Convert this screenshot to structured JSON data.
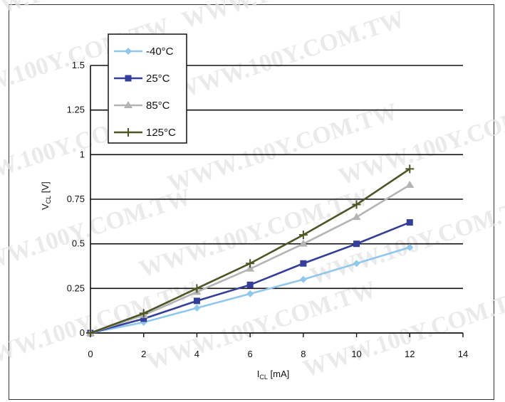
{
  "watermark": "WWW.100Y.COM.TW",
  "chart_data": {
    "type": "line",
    "xlabel": "I",
    "xlabel_sub": "CL",
    "xlabel_unit": " [mA]",
    "ylabel": "V",
    "ylabel_sub": "CL",
    "ylabel_unit": " [V]",
    "xlim": [
      0,
      14
    ],
    "ylim": [
      0,
      1.5
    ],
    "xticks": [
      "0",
      "2",
      "4",
      "6",
      "8",
      "10",
      "12",
      "14"
    ],
    "yticks": [
      "0",
      "0.25",
      "0.5",
      "0.75",
      "1",
      "1.25",
      "1.5"
    ],
    "grid": "horizontal",
    "legend_position": "top-left",
    "x": [
      0,
      2,
      4,
      6,
      8,
      10,
      12
    ],
    "series": [
      {
        "name": "-40°C",
        "color": "#8fc8ec",
        "marker": "diamond",
        "values": [
          0,
          0.06,
          0.14,
          0.22,
          0.3,
          0.39,
          0.48
        ]
      },
      {
        "name": "25°C",
        "color": "#333f9a",
        "marker": "square",
        "values": [
          0,
          0.08,
          0.18,
          0.27,
          0.39,
          0.5,
          0.62
        ]
      },
      {
        "name": "85°C",
        "color": "#b4b4b4",
        "marker": "triangle",
        "values": [
          0,
          0.1,
          0.23,
          0.36,
          0.5,
          0.65,
          0.83
        ]
      },
      {
        "name": "125°C",
        "color": "#4e5524",
        "marker": "plus",
        "values": [
          0,
          0.11,
          0.25,
          0.39,
          0.55,
          0.72,
          0.92
        ]
      }
    ]
  }
}
